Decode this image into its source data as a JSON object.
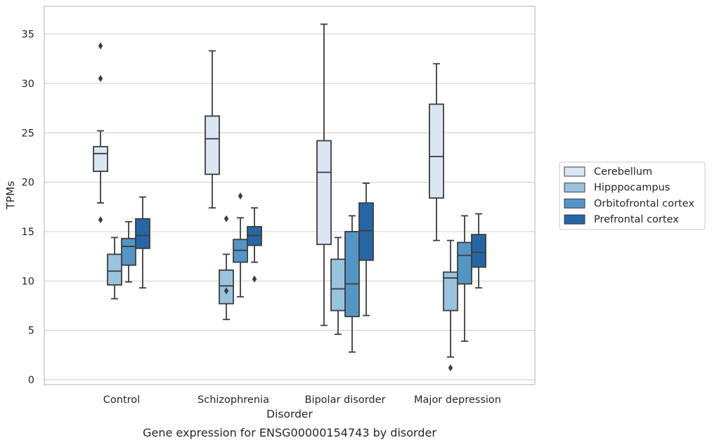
{
  "caption": "Gene expression for ENSG00000154743 by disorder",
  "chart_data": {
    "type": "box",
    "xlabel": "Disorder",
    "ylabel": "TPMs",
    "ylim": [
      -0.5,
      37.5
    ],
    "yticks": [
      0,
      5,
      10,
      15,
      20,
      25,
      30,
      35
    ],
    "grid": "horizontal",
    "legend_placement": "right",
    "categories": [
      "Control",
      "Schizophrenia",
      "Bipolar disorder",
      "Major depression"
    ],
    "series": [
      {
        "name": "Cerebellum",
        "color": "#dae6f3",
        "boxes": [
          {
            "whisker_low": 17.9,
            "q1": 21.1,
            "median": 22.9,
            "q3": 23.6,
            "whisker_high": 25.2,
            "outliers": [
              16.2,
              30.5,
              33.8
            ]
          },
          {
            "whisker_low": 17.4,
            "q1": 20.8,
            "median": 24.4,
            "q3": 26.7,
            "whisker_high": 33.3,
            "outliers": []
          },
          {
            "whisker_low": 5.5,
            "q1": 13.7,
            "median": 21.0,
            "q3": 24.2,
            "whisker_high": 36.0,
            "outliers": []
          },
          {
            "whisker_low": 14.1,
            "q1": 18.4,
            "median": 22.6,
            "q3": 27.9,
            "whisker_high": 32.0,
            "outliers": []
          }
        ]
      },
      {
        "name": "Hipppocampus",
        "color": "#9ac3de",
        "boxes": [
          {
            "whisker_low": 8.2,
            "q1": 9.6,
            "median": 11.0,
            "q3": 12.7,
            "whisker_high": 14.4,
            "outliers": []
          },
          {
            "whisker_low": 6.1,
            "q1": 7.7,
            "median": 9.5,
            "q3": 11.1,
            "whisker_high": 12.7,
            "outliers": [
              9.0,
              16.3
            ]
          },
          {
            "whisker_low": 4.6,
            "q1": 7.0,
            "median": 9.2,
            "q3": 12.2,
            "whisker_high": 14.4,
            "outliers": []
          },
          {
            "whisker_low": 2.3,
            "q1": 7.0,
            "median": 10.3,
            "q3": 10.9,
            "whisker_high": 14.1,
            "outliers": [
              1.2
            ]
          }
        ]
      },
      {
        "name": "Orbitofrontal cortex",
        "color": "#5495c5",
        "boxes": [
          {
            "whisker_low": 9.9,
            "q1": 11.6,
            "median": 13.5,
            "q3": 14.3,
            "whisker_high": 16.0,
            "outliers": []
          },
          {
            "whisker_low": 8.4,
            "q1": 11.9,
            "median": 13.1,
            "q3": 14.2,
            "whisker_high": 16.4,
            "outliers": [
              18.6
            ]
          },
          {
            "whisker_low": 2.8,
            "q1": 6.4,
            "median": 9.7,
            "q3": 15.0,
            "whisker_high": 16.6,
            "outliers": []
          },
          {
            "whisker_low": 3.9,
            "q1": 9.7,
            "median": 12.6,
            "q3": 13.9,
            "whisker_high": 16.6,
            "outliers": []
          }
        ]
      },
      {
        "name": "Prefrontal cortex",
        "color": "#2666a4",
        "boxes": [
          {
            "whisker_low": 9.3,
            "q1": 13.3,
            "median": 14.6,
            "q3": 16.3,
            "whisker_high": 18.5,
            "outliers": []
          },
          {
            "whisker_low": 11.9,
            "q1": 13.6,
            "median": 14.6,
            "q3": 15.5,
            "whisker_high": 17.4,
            "outliers": [
              10.2
            ]
          },
          {
            "whisker_low": 6.5,
            "q1": 12.1,
            "median": 15.1,
            "q3": 17.9,
            "whisker_high": 19.9,
            "outliers": []
          },
          {
            "whisker_low": 9.3,
            "q1": 11.4,
            "median": 12.9,
            "q3": 14.7,
            "whisker_high": 16.8,
            "outliers": []
          }
        ]
      }
    ]
  }
}
